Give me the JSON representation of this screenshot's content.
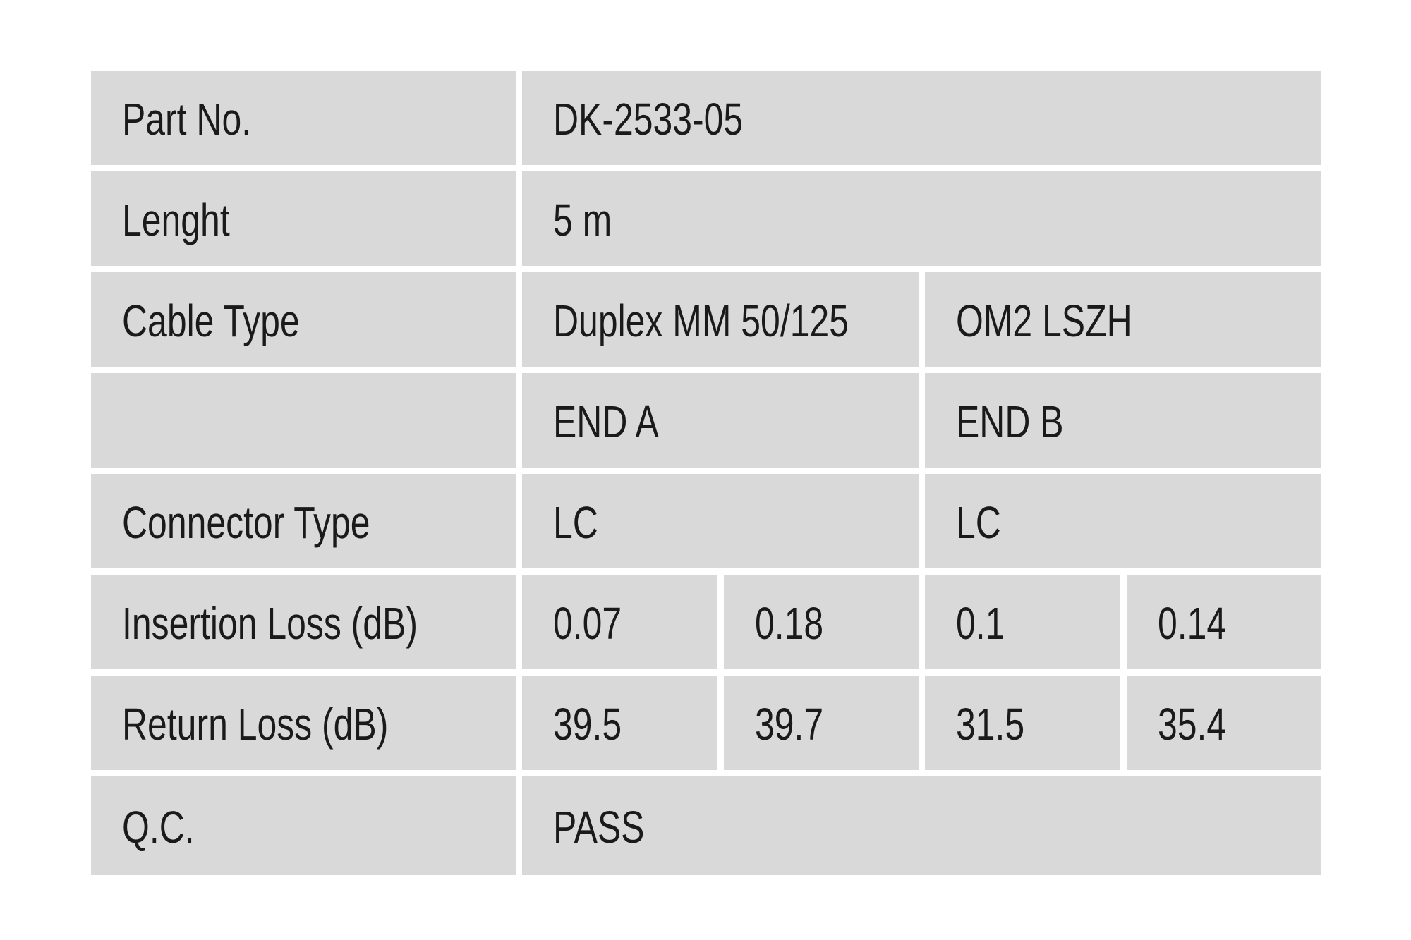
{
  "page": {
    "background_color": "#ffffff"
  },
  "table": {
    "cell_background_color": "#d9d9d9",
    "text_color": "#1a1a1a",
    "rows": [
      {
        "name": "part-no",
        "label": "Part No.",
        "values": [
          "DK-2533-05"
        ]
      },
      {
        "name": "length",
        "label": "Lenght",
        "values": [
          "5 m"
        ]
      },
      {
        "name": "cable-type",
        "label": "Cable Type",
        "values": [
          "Duplex MM 50/125",
          "OM2 LSZH"
        ]
      },
      {
        "name": "end-header",
        "label": "",
        "values": [
          "END A",
          "END B"
        ]
      },
      {
        "name": "connector-type",
        "label": "Connector Type",
        "values": [
          "LC",
          "LC"
        ]
      },
      {
        "name": "insertion-loss",
        "label": "Insertion Loss (dB)",
        "values": [
          "0.07",
          "0.18",
          "0.1",
          "0.14"
        ]
      },
      {
        "name": "return-loss",
        "label": "Return Loss (dB)",
        "values": [
          "39.5",
          "39.7",
          "31.5",
          "35.4"
        ]
      },
      {
        "name": "qc",
        "label": "Q.C.",
        "values": [
          "PASS"
        ]
      }
    ]
  }
}
